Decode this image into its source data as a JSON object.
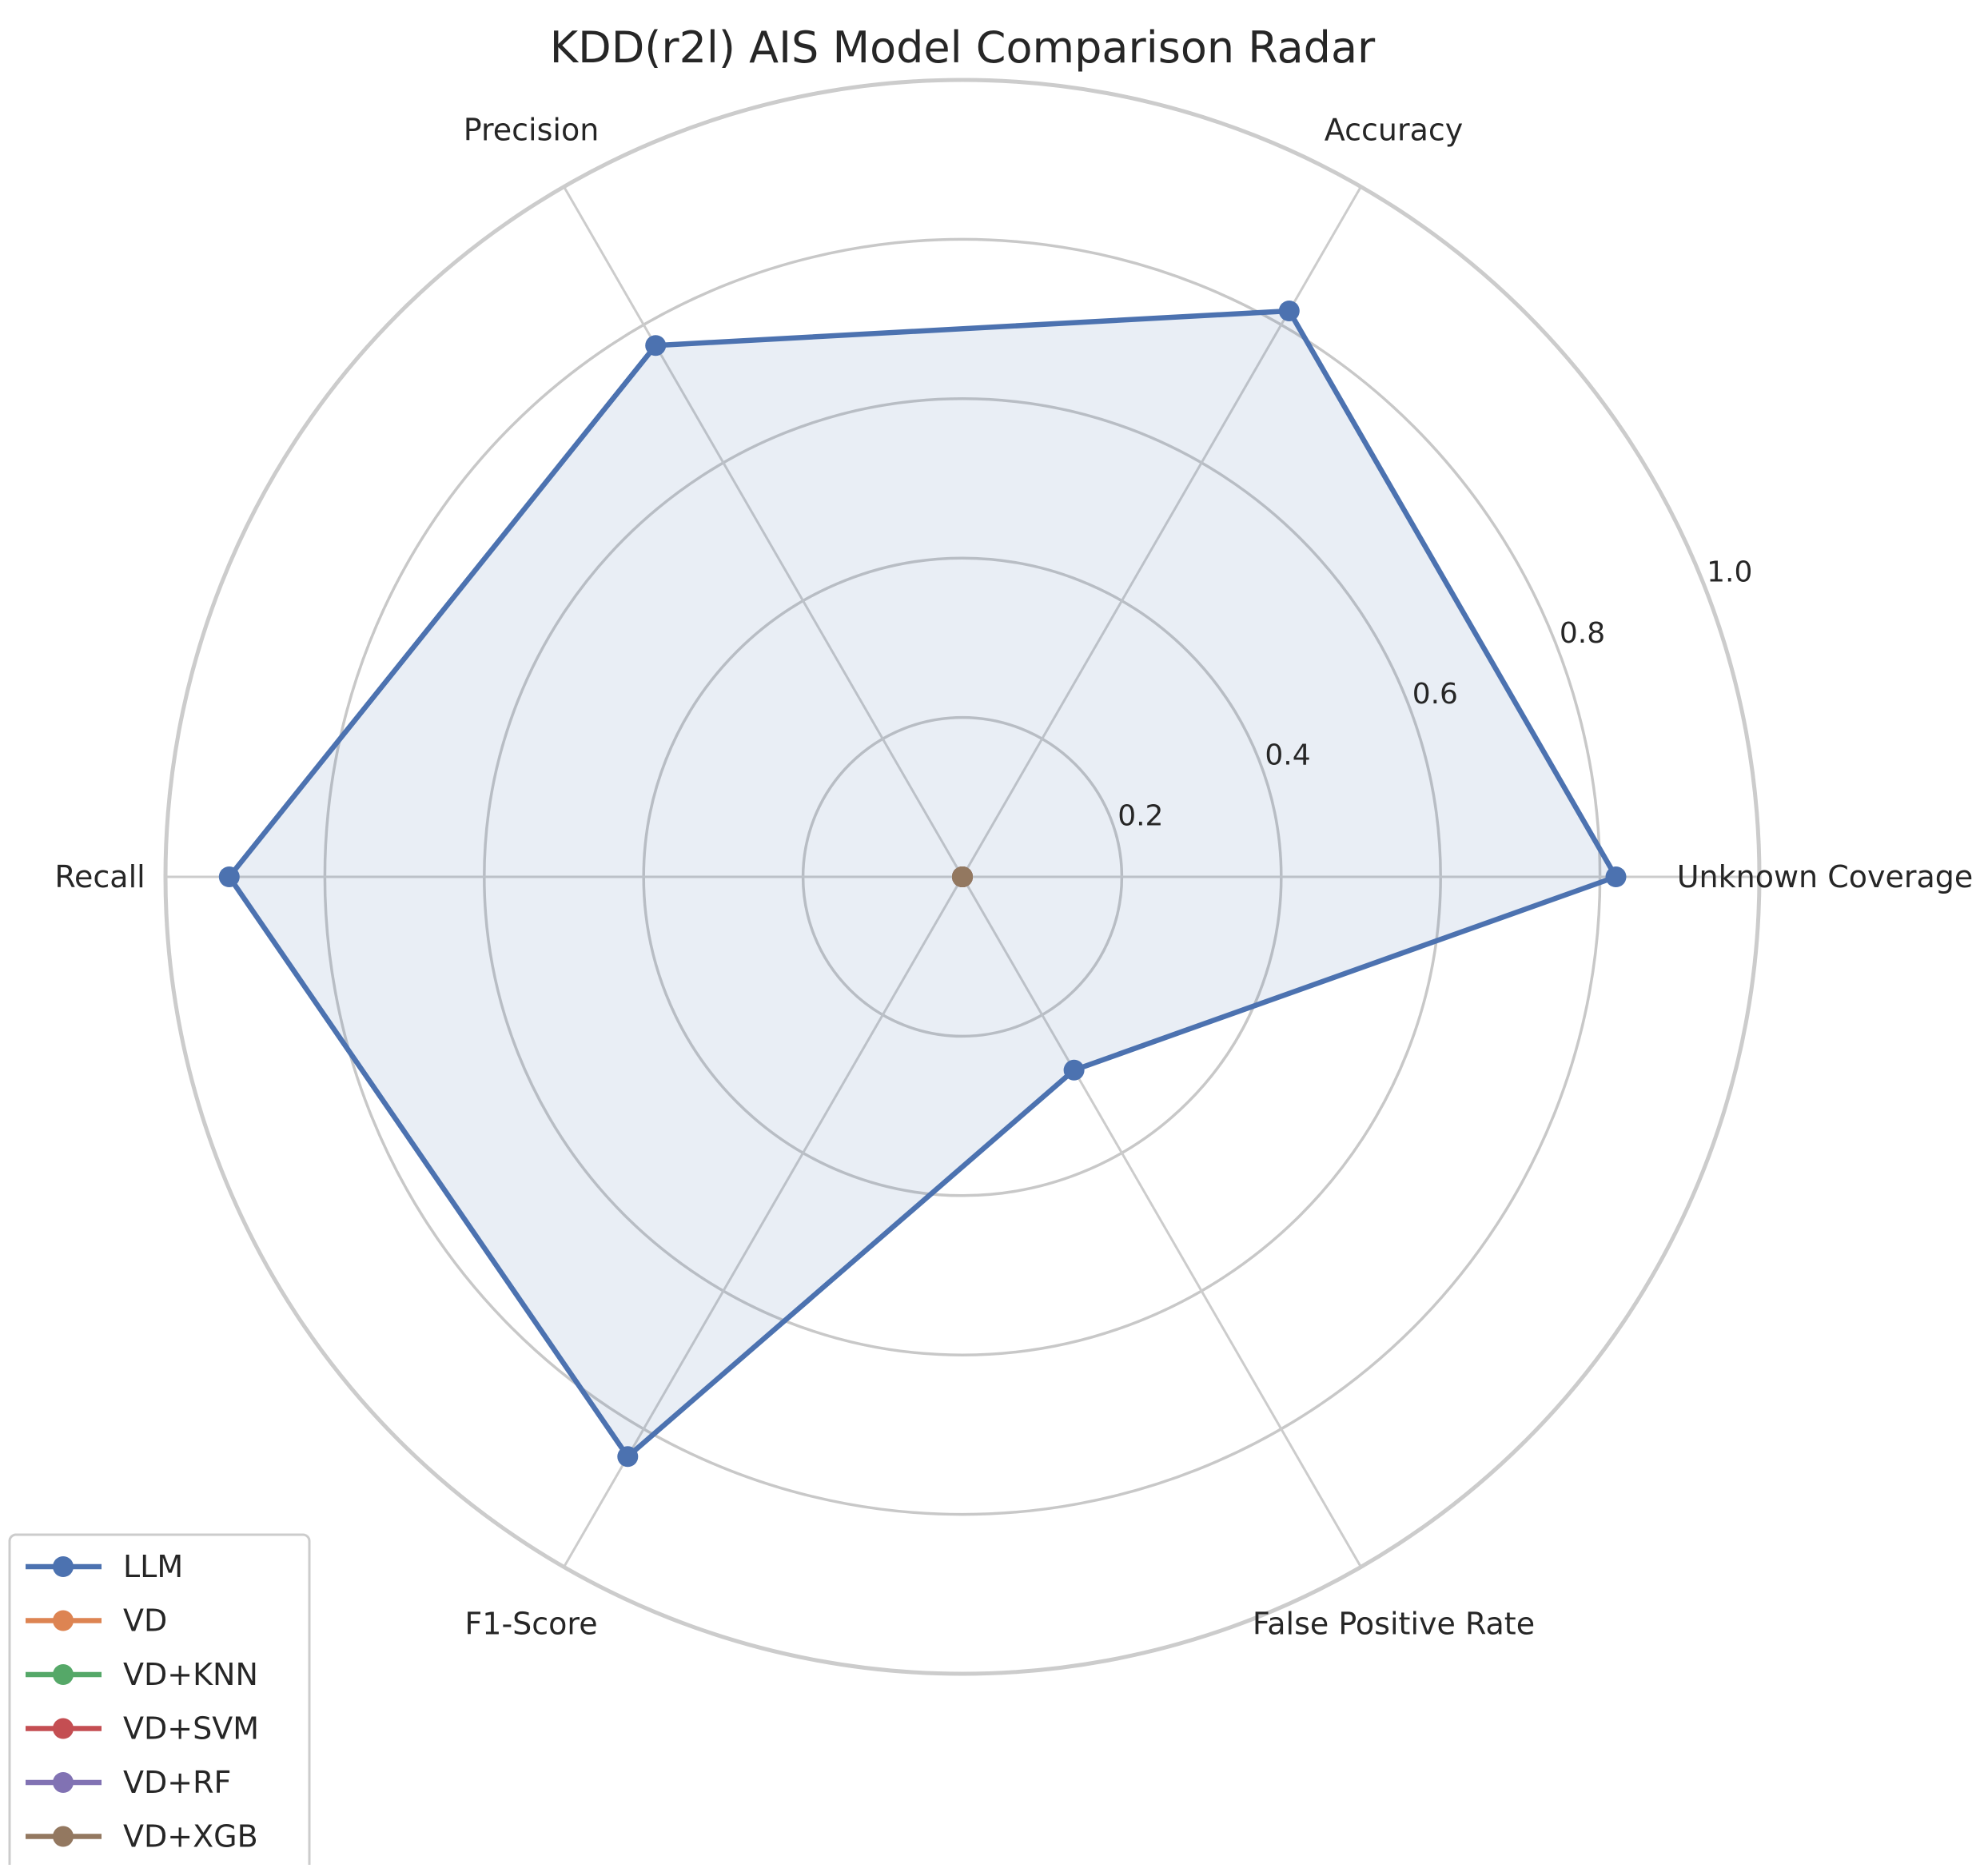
{
  "chart_data": {
    "type": "radar",
    "title": "KDD(r2l) AIS Model Comparison Radar",
    "axes": [
      "Unknown Coverage",
      "Accuracy",
      "Precision",
      "Recall",
      "F1-Score",
      "False Positive Rate"
    ],
    "rlim": [
      0,
      1.0
    ],
    "rticks": [
      0.2,
      0.4,
      0.6,
      0.8,
      1.0
    ],
    "rtick_labels": [
      "0.2",
      "0.4",
      "0.6",
      "0.8",
      "1.0"
    ],
    "grid": true,
    "legend_position": "lower-left",
    "series": [
      {
        "name": "LLM",
        "color": "#4c72b0",
        "values": [
          0.82,
          0.82,
          0.77,
          0.92,
          0.84,
          0.28
        ],
        "fill": true
      },
      {
        "name": "VD",
        "color": "#dd8452",
        "values": [
          0,
          0,
          0,
          0,
          0,
          0
        ]
      },
      {
        "name": "VD+KNN",
        "color": "#55a868",
        "values": [
          0,
          0,
          0,
          0,
          0,
          0
        ]
      },
      {
        "name": "VD+SVM",
        "color": "#c44e52",
        "values": [
          0,
          0,
          0,
          0,
          0,
          0
        ]
      },
      {
        "name": "VD+RF",
        "color": "#8172b3",
        "values": [
          0,
          0,
          0,
          0,
          0,
          0
        ]
      },
      {
        "name": "VD+XGB",
        "color": "#937860",
        "values": [
          0,
          0,
          0,
          0,
          0,
          0
        ]
      }
    ]
  }
}
